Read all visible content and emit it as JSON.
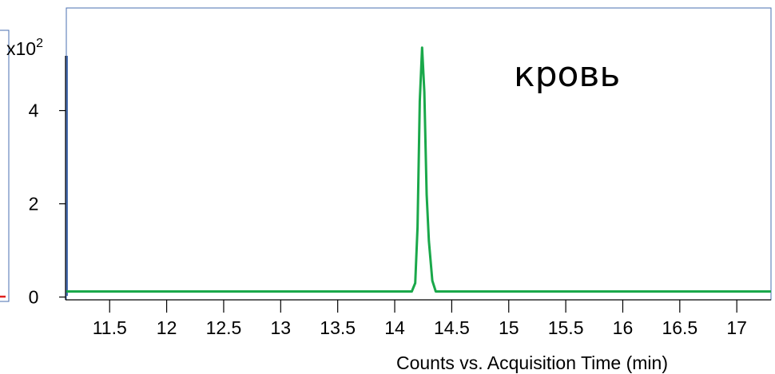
{
  "chart_data": {
    "type": "line",
    "xlabel": "Counts vs. Acquisition Time (min)",
    "y_scale_label": "x10",
    "y_scale_exponent": "2",
    "annotation": "кровь",
    "xlim": [
      11.12,
      17.3
    ],
    "ylim": [
      -0.06,
      6.2
    ],
    "x_ticks": [
      11.5,
      12,
      12.5,
      13,
      13.5,
      14,
      14.5,
      15,
      15.5,
      16,
      16.5,
      17
    ],
    "x_tick_labels": [
      "11.5",
      "12",
      "12.5",
      "13",
      "13.5",
      "14",
      "14.5",
      "15",
      "15.5",
      "16",
      "16.5",
      "17"
    ],
    "y_ticks": [
      0,
      2,
      4
    ],
    "y_tick_labels": [
      "0",
      "2",
      "4"
    ],
    "grid": false,
    "series": [
      {
        "color": "#1aa84a",
        "x": [
          11.12,
          14.15,
          14.18,
          14.2,
          14.22,
          14.24,
          14.26,
          14.28,
          14.3,
          14.33,
          14.36,
          14.4,
          17.3
        ],
        "y": [
          0.12,
          0.12,
          0.3,
          1.5,
          4.2,
          5.35,
          4.4,
          2.2,
          1.2,
          0.35,
          0.12,
          0.12,
          0.12
        ]
      }
    ]
  },
  "colors": {
    "frame": "#4a6fb0",
    "axis": "#000000",
    "marker": "#e0201e"
  }
}
